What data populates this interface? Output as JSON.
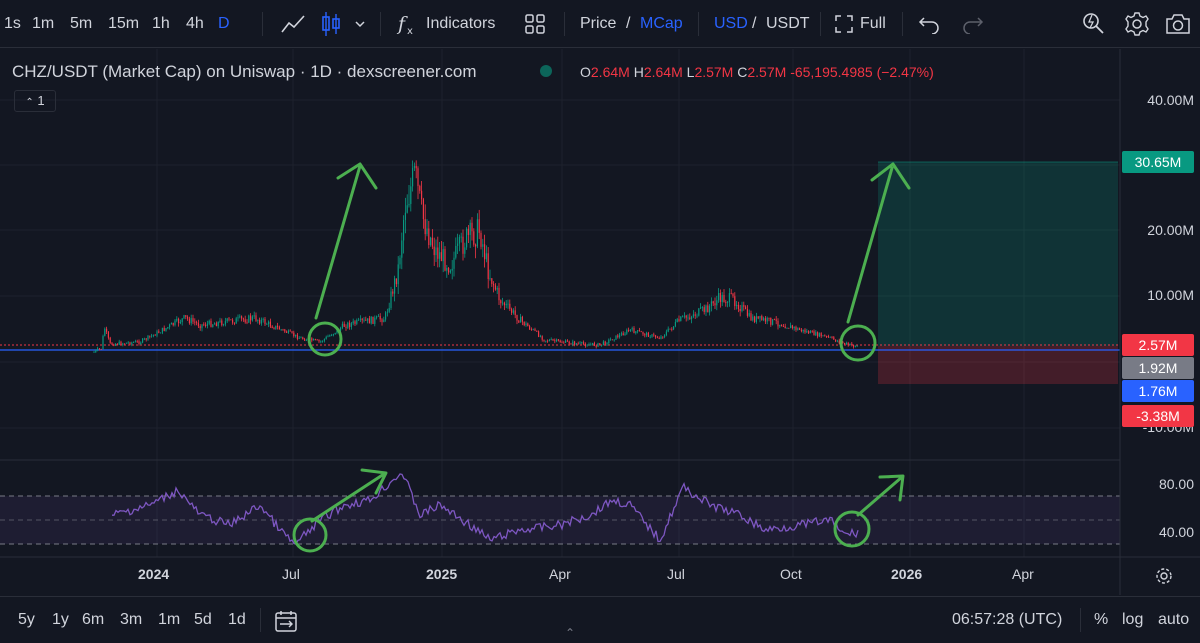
{
  "toolbar": {
    "intervals": [
      "1s",
      "1m",
      "5m",
      "15m",
      "1h",
      "4h",
      "D"
    ],
    "active_interval": "D",
    "indicators_label": "Indicators",
    "price_label": "Price",
    "slash": "/",
    "mcap_label": "MCap",
    "usd_label": "USD",
    "usdt_label": "USDT",
    "full_label": "Full"
  },
  "legend": {
    "title": "CHZ/USDT (Market Cap) on Uniswap · 1D · dexscreener.com",
    "o_label": "O",
    "o_value": "2.64M",
    "h_label": "H",
    "h_value": "2.64M",
    "l_label": "L",
    "l_value": "2.57M",
    "c_label": "C",
    "c_value": "2.57M",
    "change": "-65,195.4985 (−2.47%)",
    "collapse_count": "1"
  },
  "price_axis": {
    "ticks": [
      "40.00M",
      "20.00M",
      "10.00M",
      "-10.00M"
    ],
    "tags": [
      {
        "label": "30.65M",
        "color": "#089981"
      },
      {
        "label": "2.57M",
        "color": "#f23645"
      },
      {
        "label": "1.92M",
        "color": "#787b86"
      },
      {
        "label": "1.76M",
        "color": "#2962ff"
      },
      {
        "label": "-3.38M",
        "color": "#f23645"
      }
    ]
  },
  "rsi_axis": {
    "ticks": [
      "80.00",
      "40.00"
    ]
  },
  "time_axis": {
    "labels": [
      {
        "text": "2024",
        "bold": true
      },
      {
        "text": "Jul",
        "bold": false
      },
      {
        "text": "2025",
        "bold": true
      },
      {
        "text": "Apr",
        "bold": false
      },
      {
        "text": "Jul",
        "bold": false
      },
      {
        "text": "Oct",
        "bold": false
      },
      {
        "text": "2026",
        "bold": true
      },
      {
        "text": "Apr",
        "bold": false
      }
    ]
  },
  "bottombar": {
    "ranges": [
      "5y",
      "1y",
      "6m",
      "3m",
      "1m",
      "5d",
      "1d"
    ],
    "clock": "06:57:28 (UTC)",
    "percent_label": "%",
    "log_label": "log",
    "auto_label": "auto"
  },
  "colors": {
    "up": "#089981",
    "down": "#f23645",
    "rsi": "#7e57c2",
    "annotation": "#4caf50",
    "accent": "#2962ff"
  }
}
